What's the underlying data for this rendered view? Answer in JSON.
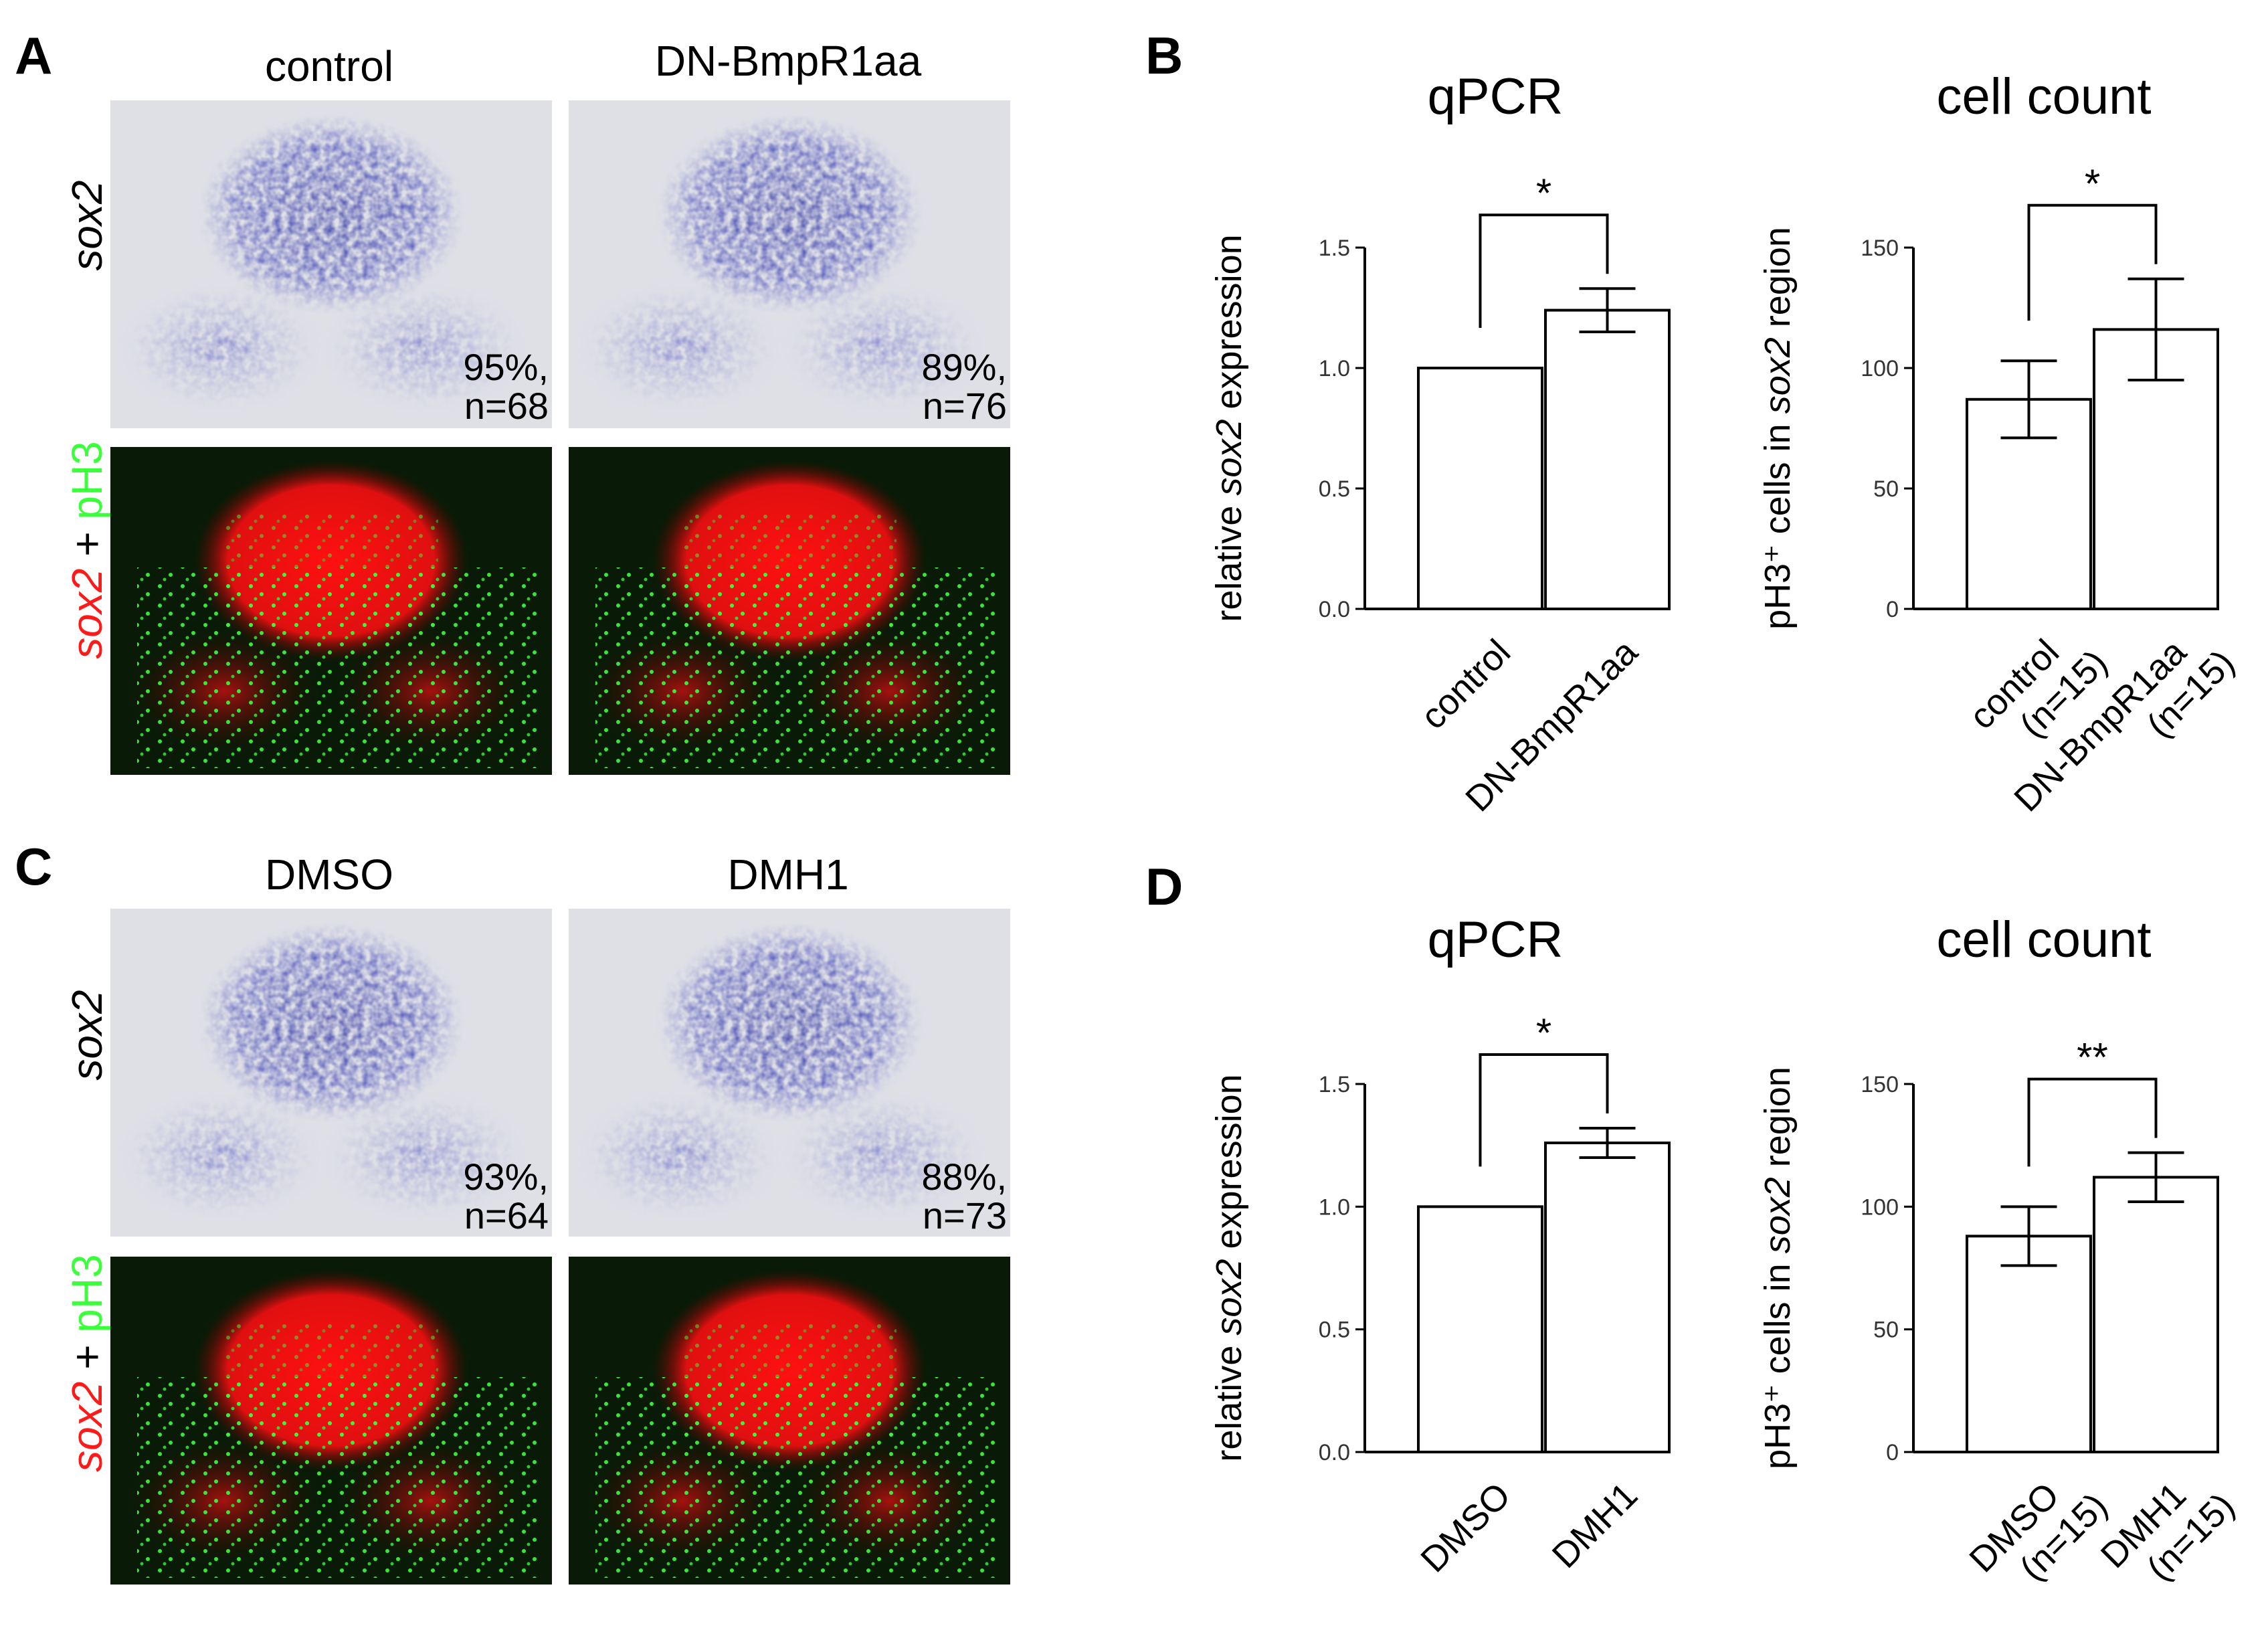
{
  "figure": {
    "panels": {
      "A": {
        "letter": "A",
        "columns": [
          "control",
          "DN-BmpR1aa"
        ],
        "row_labels": {
          "ish": "sox2",
          "fluo_sox2": "sox2",
          "fluo_plus": " + ",
          "fluo_ph3": "pH3"
        },
        "stats": [
          {
            "pct": "95%,",
            "n": "n=68"
          },
          {
            "pct": "89%,",
            "n": "n=76"
          }
        ]
      },
      "B": {
        "letter": "B"
      },
      "C": {
        "letter": "C",
        "columns": [
          "DMSO",
          "DMH1"
        ],
        "row_labels": {
          "ish": "sox2",
          "fluo_sox2": "sox2",
          "fluo_plus": " + ",
          "fluo_ph3": "pH3"
        },
        "stats": [
          {
            "pct": "93%,",
            "n": "n=64"
          },
          {
            "pct": "88%,",
            "n": "n=73"
          }
        ]
      },
      "D": {
        "letter": "D"
      }
    },
    "colors": {
      "ish_blue": "#2a2fa8",
      "sox2_red": "#ff1a1a",
      "ph3_green": "#3aff3a"
    }
  },
  "chart_data": [
    {
      "id": "B-qpcr",
      "type": "bar",
      "title": "qPCR",
      "ylabel_pre": "relative ",
      "ylabel_italic": "sox2",
      "ylabel_post": " expression",
      "categories": [
        [
          "control"
        ],
        [
          "DN-BmpR1aa"
        ]
      ],
      "values": [
        1.0,
        1.24
      ],
      "errors": [
        0,
        0.09
      ],
      "ylim": [
        0,
        1.5
      ],
      "yticks": [
        "0.0",
        "0.5",
        "1.0",
        "1.5"
      ],
      "ytick_values": [
        0,
        0.5,
        1.0,
        1.5
      ],
      "significance": "*"
    },
    {
      "id": "B-count",
      "type": "bar",
      "title": "cell count",
      "ylabel_pre": "pH3⁺ cells in ",
      "ylabel_italic": "sox2",
      "ylabel_post": " region",
      "categories": [
        [
          "control",
          "(n=15)"
        ],
        [
          "DN-BmpR1aa",
          "(n=15)"
        ]
      ],
      "values": [
        87,
        116
      ],
      "errors": [
        16,
        21
      ],
      "ylim": [
        0,
        150
      ],
      "yticks": [
        "0",
        "50",
        "100",
        "150"
      ],
      "ytick_values": [
        0,
        50,
        100,
        150
      ],
      "significance": "*"
    },
    {
      "id": "D-qpcr",
      "type": "bar",
      "title": "qPCR",
      "ylabel_pre": "relative ",
      "ylabel_italic": "sox2",
      "ylabel_post": " expression",
      "categories": [
        [
          "DMSO"
        ],
        [
          "DMH1"
        ]
      ],
      "values": [
        1.0,
        1.26
      ],
      "errors": [
        0,
        0.06
      ],
      "ylim": [
        0,
        1.5
      ],
      "yticks": [
        "0.0",
        "0.5",
        "1.0",
        "1.5"
      ],
      "ytick_values": [
        0,
        0.5,
        1.0,
        1.5
      ],
      "significance": "*"
    },
    {
      "id": "D-count",
      "type": "bar",
      "title": "cell count",
      "ylabel_pre": "pH3⁺ cells in ",
      "ylabel_italic": "sox2",
      "ylabel_post": " region",
      "categories": [
        [
          "DMSO",
          "(n=15)"
        ],
        [
          "DMH1",
          "(n=15)"
        ]
      ],
      "values": [
        88,
        112
      ],
      "errors": [
        12,
        10
      ],
      "ylim": [
        0,
        150
      ],
      "yticks": [
        "0",
        "50",
        "100",
        "150"
      ],
      "ytick_values": [
        0,
        50,
        100,
        150
      ],
      "significance": "**"
    }
  ]
}
